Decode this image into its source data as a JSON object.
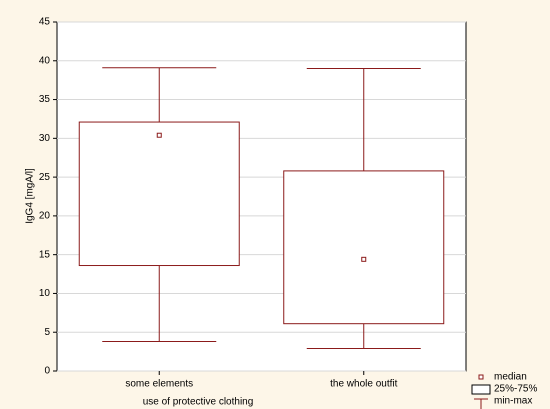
{
  "chart_data": {
    "type": "box",
    "x_label": "use of protective clothing",
    "y_label": "IgG4 [mgA/l]",
    "categories": [
      "some elements",
      "the whole outfit"
    ],
    "boxes": [
      {
        "min": 3.8,
        "q1": 13.6,
        "median": 30.4,
        "q3": 32.1,
        "max": 39.1
      },
      {
        "min": 2.9,
        "q1": 6.1,
        "median": 14.4,
        "q3": 25.8,
        "max": 39.0
      }
    ],
    "ylim": [
      0,
      45
    ],
    "yticks": [
      0,
      5,
      10,
      15,
      20,
      25,
      30,
      35,
      40,
      45
    ],
    "grid": true,
    "color": "#8b1a1a",
    "legend": {
      "median": "median",
      "box": "25%-75%",
      "whisker": "min-max"
    }
  }
}
